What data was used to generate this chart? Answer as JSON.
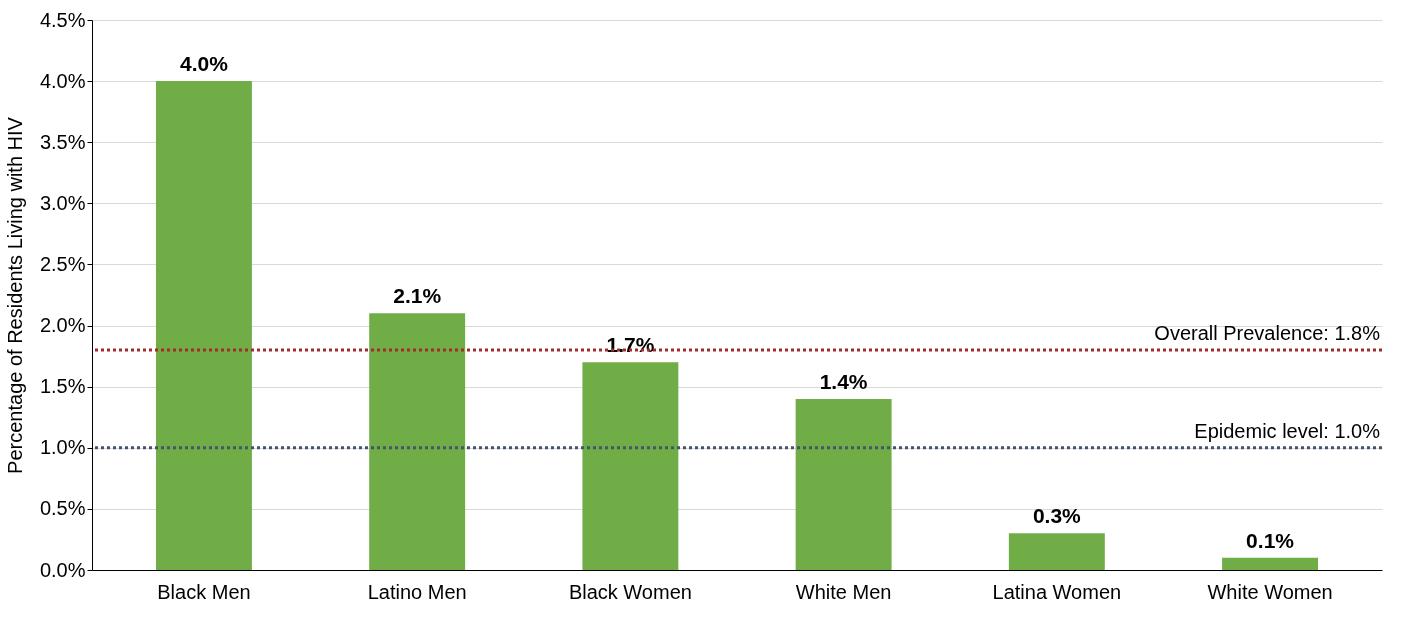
{
  "chart_data": {
    "type": "bar",
    "ylabel": "Percentage of Residents Living with HIV",
    "categories": [
      "Black Men",
      "Latino Men",
      "Black Women",
      "White Men",
      "Latina Women",
      "White Women"
    ],
    "values": [
      4.0,
      2.1,
      1.7,
      1.4,
      0.3,
      0.1
    ],
    "value_labels": [
      "4.0%",
      "2.1%",
      "1.7%",
      "1.4%",
      "0.3%",
      "0.1%"
    ],
    "color": "#70ad47",
    "ylim": [
      0,
      4.5
    ],
    "yticks": [
      {
        "value": 0,
        "label": "0.0%"
      },
      {
        "value": 0.5,
        "label": "0.5%"
      },
      {
        "value": 1,
        "label": "1.0%"
      },
      {
        "value": 1.5,
        "label": "1.5%"
      },
      {
        "value": 2,
        "label": "2.0%"
      },
      {
        "value": 2.5,
        "label": "2.5%"
      },
      {
        "value": 3,
        "label": "3.0%"
      },
      {
        "value": 3.5,
        "label": "3.5%"
      },
      {
        "value": 4,
        "label": "4.0%"
      },
      {
        "value": 4.5,
        "label": "4.5%"
      }
    ],
    "ref_lines": [
      {
        "axis": "y",
        "value": 1.8,
        "label": "Overall Prevalence: 1.8%",
        "color": "#a52a2a",
        "line_style": "dotted"
      },
      {
        "axis": "y",
        "value": 1.0,
        "label": "Epidemic level: 1.0%",
        "color": "#44546a",
        "line_style": "dotted"
      }
    ],
    "grid": "y"
  }
}
